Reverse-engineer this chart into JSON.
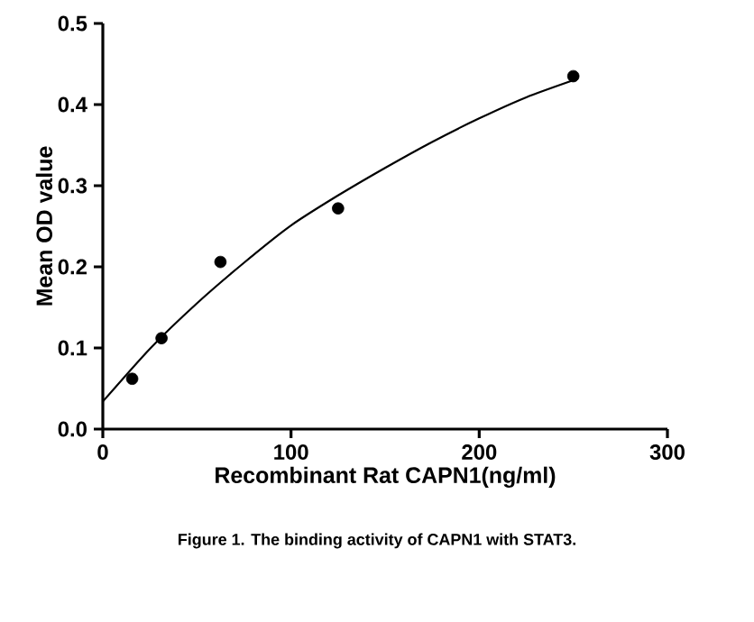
{
  "chart_data": {
    "type": "scatter",
    "xlabel": "Recombinant Rat CAPN1(ng/ml)",
    "ylabel": "Mean OD value",
    "annotations": [
      "Figure 1. The binding activity of CAPN1 with STAT3."
    ],
    "xlim": [
      0,
      300
    ],
    "xticks": [
      0,
      100,
      200,
      300
    ],
    "ylim": [
      0,
      0.5
    ],
    "yticks": [
      {
        "value": 0,
        "label": "0.0"
      },
      0.1,
      0.2,
      0.3,
      0.4,
      0.5
    ],
    "grid": false,
    "series": [
      {
        "color": "#000000",
        "marker": "circle",
        "x": [
          15.6,
          31.2,
          62.5,
          125,
          250
        ],
        "values": [
          0.062,
          0.112,
          0.206,
          0.272,
          0.435
        ]
      },
      {
        "type": "line",
        "color": "#000000",
        "marker": "none",
        "x": [
          0,
          25,
          50,
          75,
          100,
          125,
          150,
          175,
          200,
          225,
          250
        ],
        "values": [
          0.034,
          0.099,
          0.155,
          0.205,
          0.251,
          0.288,
          0.322,
          0.354,
          0.383,
          0.409,
          0.43
        ]
      }
    ]
  }
}
